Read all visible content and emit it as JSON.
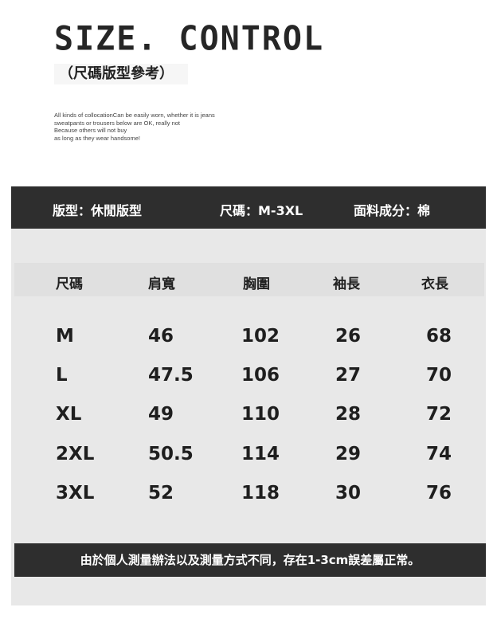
{
  "header": {
    "title": "SIZE. CONTROL",
    "subtitle": "（尺碼版型參考）",
    "description": [
      "All kinds of collocationCan be easily worn, whether it is jeans",
      "sweatpants or trousers below are OK, really not",
      "Because others will not buy",
      "as long as they wear handsome!"
    ]
  },
  "info": {
    "fit": "版型：休閒版型",
    "size": "尺碼：M-3XL",
    "fabric": "面料成分：棉"
  },
  "table": {
    "columns": [
      "尺碼",
      "肩寬",
      "胸圍",
      "袖長",
      "衣長"
    ],
    "rows": [
      [
        "M",
        "46",
        "102",
        "26",
        "68"
      ],
      [
        "L",
        "47.5",
        "106",
        "27",
        "70"
      ],
      [
        "XL",
        "49",
        "110",
        "28",
        "72"
      ],
      [
        "2XL",
        "50.5",
        "114",
        "29",
        "74"
      ],
      [
        "3XL",
        "52",
        "118",
        "30",
        "76"
      ]
    ]
  },
  "note": "由於個人測量辦法以及測量方式不同，存在1-3cm誤差屬正常。",
  "colors": {
    "dark_band": "#2e2e2e",
    "panel": "#e8e8e8",
    "header_row": "#e0e0e0"
  }
}
